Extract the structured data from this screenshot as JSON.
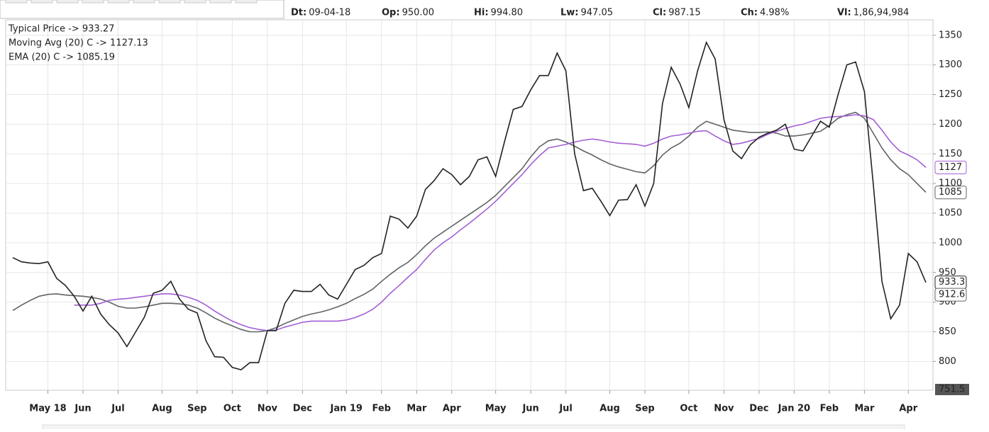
{
  "chart_data": {
    "type": "line",
    "header": [
      {
        "key": "Dt:",
        "value": "09-04-18"
      },
      {
        "key": "Op:",
        "value": "950.00"
      },
      {
        "key": "Hi:",
        "value": "994.80"
      },
      {
        "key": "Lw:",
        "value": "947.05"
      },
      {
        "key": "Cl:",
        "value": "987.15"
      },
      {
        "key": "Ch:",
        "value": "4.98%"
      },
      {
        "key": "Vl:",
        "value": "1,86,94,984"
      }
    ],
    "categories": [
      null,
      null,
      null,
      null,
      "May 18",
      null,
      null,
      null,
      "Jun",
      null,
      null,
      null,
      "Jul",
      null,
      null,
      null,
      null,
      "Aug",
      null,
      null,
      null,
      "Sep",
      null,
      null,
      null,
      "Oct",
      null,
      null,
      null,
      "Nov",
      null,
      null,
      null,
      "Dec",
      null,
      null,
      null,
      null,
      "Jan 19",
      null,
      null,
      null,
      "Feb",
      null,
      null,
      null,
      "Mar",
      null,
      null,
      null,
      "Apr",
      null,
      null,
      null,
      null,
      "May",
      null,
      null,
      null,
      "Jun",
      null,
      null,
      null,
      "Jul",
      null,
      null,
      null,
      null,
      "Aug",
      null,
      null,
      null,
      "Sep",
      null,
      null,
      null,
      null,
      "Oct",
      null,
      null,
      null,
      "Nov",
      null,
      null,
      null,
      "Dec",
      null,
      null,
      null,
      "Jan 20",
      null,
      null,
      null,
      "Feb",
      null,
      null,
      null,
      "Mar",
      null,
      null,
      null,
      null,
      "Apr",
      null,
      null
    ],
    "series": [
      {
        "name": "Typical Price -> 933.27",
        "color": "#222222",
        "values": [
          975,
          968,
          966,
          965,
          968,
          940,
          928,
          910,
          885,
          910,
          880,
          862,
          848,
          825,
          850,
          875,
          915,
          920,
          935,
          905,
          888,
          882,
          835,
          808,
          807,
          790,
          786,
          798,
          798,
          852,
          852,
          898,
          920,
          918,
          918,
          930,
          912,
          905,
          930,
          955,
          962,
          975,
          982,
          1045,
          1040,
          1025,
          1045,
          1090,
          1105,
          1125,
          1115,
          1098,
          1112,
          1140,
          1145,
          1112,
          1170,
          1225,
          1230,
          1258,
          1282,
          1282,
          1320,
          1290,
          1150,
          1088,
          1092,
          1070,
          1046,
          1072,
          1073,
          1098,
          1062,
          1100,
          1235,
          1296,
          1268,
          1228,
          1290,
          1338,
          1310,
          1208,
          1155,
          1142,
          1165,
          1178,
          1185,
          1190,
          1200,
          1158,
          1155,
          1180,
          1205,
          1195,
          1250,
          1300,
          1305,
          1255,
          1100,
          935,
          872,
          895,
          982,
          968,
          933.27
        ]
      },
      {
        "name": "Moving Avg (20) C -> 1127.13",
        "color": "#a25fd6",
        "values": [
          null,
          null,
          null,
          null,
          null,
          null,
          null,
          895,
          895,
          895,
          898,
          903,
          905,
          906,
          908,
          910,
          912,
          914,
          914,
          912,
          908,
          903,
          895,
          885,
          876,
          868,
          862,
          857,
          854,
          852,
          853,
          858,
          862,
          866,
          868,
          868,
          868,
          868,
          870,
          874,
          880,
          888,
          900,
          915,
          928,
          942,
          955,
          972,
          988,
          1000,
          1010,
          1022,
          1033,
          1045,
          1057,
          1070,
          1085,
          1100,
          1115,
          1132,
          1147,
          1160,
          1163,
          1166,
          1170,
          1173,
          1175,
          1173,
          1170,
          1168,
          1167,
          1166,
          1163,
          1168,
          1175,
          1180,
          1182,
          1185,
          1188,
          1189,
          1180,
          1172,
          1166,
          1168,
          1172,
          1176,
          1183,
          1188,
          1193,
          1197,
          1200,
          1205,
          1210,
          1212,
          1213,
          1214,
          1216,
          1214,
          1208,
          1190,
          1170,
          1155,
          1148,
          1140,
          1127.13
        ]
      },
      {
        "name": "EMA (20) C -> 1085.19",
        "color": "#5f6465",
        "values": [
          886,
          895,
          903,
          910,
          913,
          914,
          912,
          911,
          910,
          908,
          905,
          900,
          893,
          890,
          890,
          892,
          895,
          898,
          898,
          897,
          895,
          890,
          882,
          873,
          866,
          860,
          854,
          850,
          850,
          852,
          857,
          864,
          870,
          876,
          880,
          883,
          887,
          892,
          898,
          906,
          913,
          922,
          935,
          947,
          958,
          967,
          980,
          995,
          1008,
          1018,
          1028,
          1038,
          1048,
          1058,
          1068,
          1080,
          1095,
          1110,
          1125,
          1145,
          1162,
          1172,
          1175,
          1170,
          1163,
          1155,
          1148,
          1140,
          1133,
          1128,
          1124,
          1120,
          1118,
          1130,
          1148,
          1160,
          1168,
          1180,
          1195,
          1205,
          1200,
          1195,
          1190,
          1188,
          1186,
          1186,
          1187,
          1185,
          1180,
          1180,
          1182,
          1185,
          1188,
          1198,
          1210,
          1216,
          1220,
          1210,
          1185,
          1160,
          1140,
          1125,
          1115,
          1100,
          1085.19
        ]
      }
    ],
    "value_tags": [
      {
        "value": 1127,
        "label": "1127",
        "color": "#a25fd6"
      },
      {
        "value": 1085,
        "label": "1085",
        "color": "#5f6465"
      },
      {
        "value": 933.3,
        "label": "933.3",
        "color": "#222222"
      },
      {
        "value": 912.6,
        "label": "912.6",
        "color": "#5f6465"
      }
    ],
    "ylim": [
      751.5,
      1376
    ],
    "yticks": [
      800,
      850,
      900,
      950,
      1000,
      1050,
      1100,
      1150,
      1200,
      1250,
      1300,
      1350
    ],
    "grid": true
  }
}
